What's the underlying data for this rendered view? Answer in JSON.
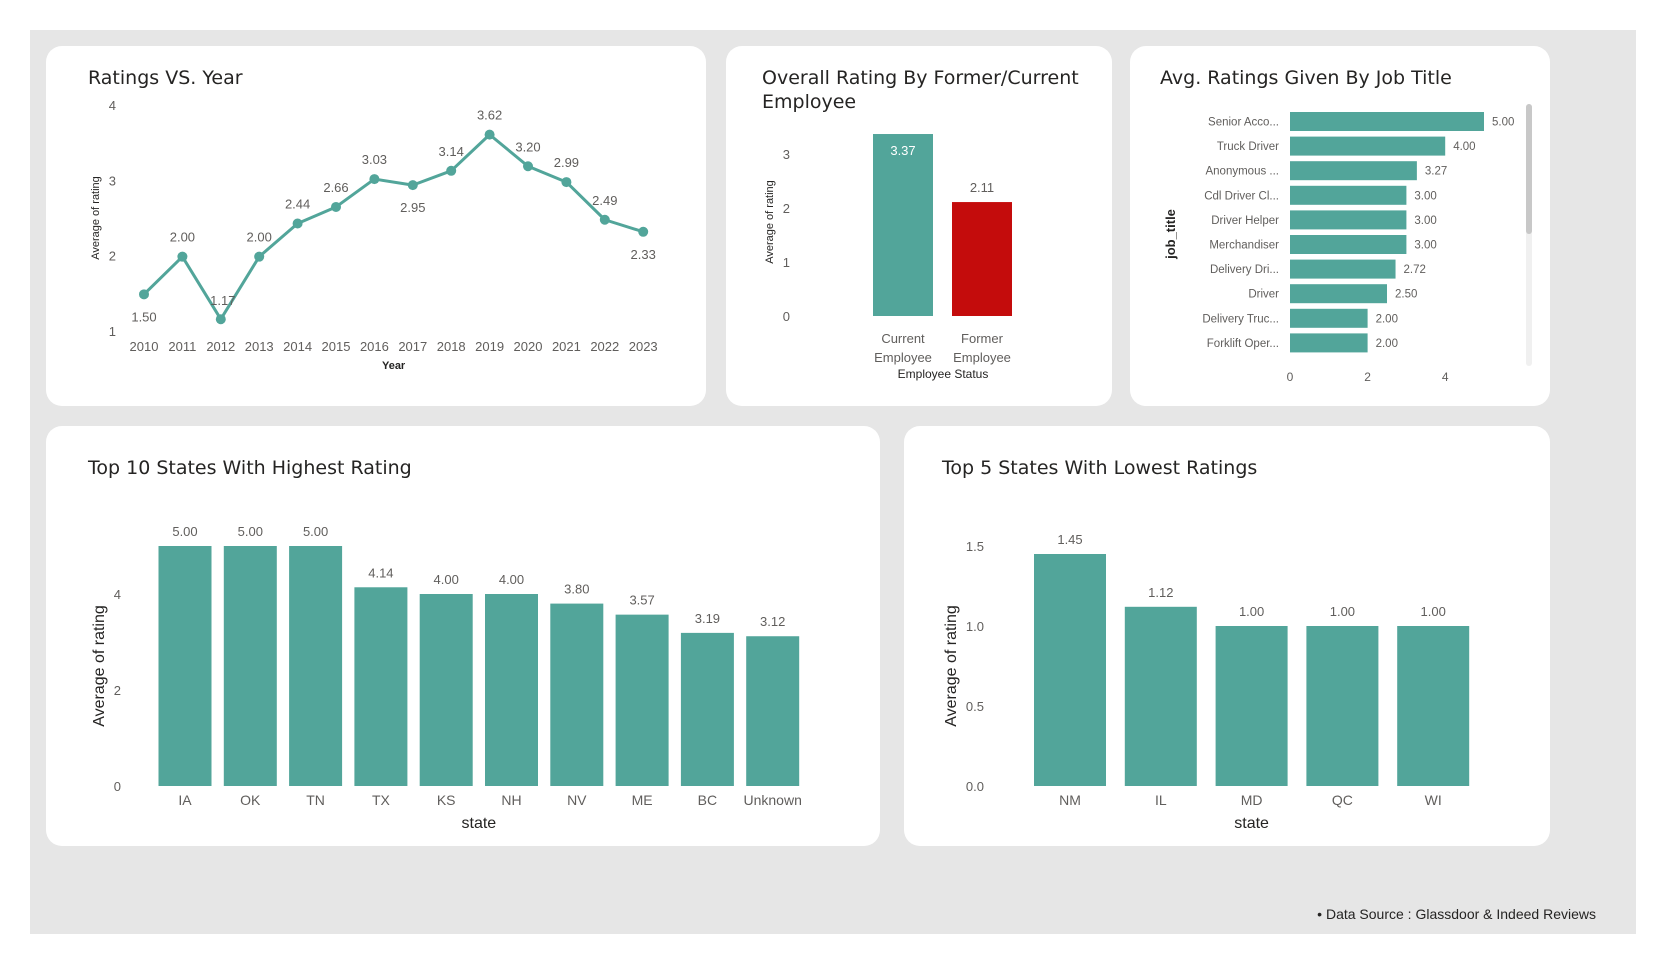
{
  "footer": {
    "bullet": "•",
    "text": "Data Source : Glassdoor & Indeed Reviews"
  },
  "colors": {
    "teal": "#52a59a",
    "red": "#c40c0c",
    "axis_text": "#605e5c",
    "label_text": "#252423"
  },
  "chart_data": [
    {
      "id": "ratings-vs-year",
      "type": "line",
      "title": "Ratings VS. Year",
      "xlabel": "Year",
      "ylabel": "Average of rating",
      "ylim": [
        1,
        4
      ],
      "yticks": [
        "1",
        "2",
        "3",
        "4"
      ],
      "x": [
        "2010",
        "2011",
        "2012",
        "2013",
        "2014",
        "2015",
        "2016",
        "2017",
        "2018",
        "2019",
        "2020",
        "2021",
        "2022",
        "2023"
      ],
      "values": [
        1.5,
        2.0,
        1.17,
        2.0,
        2.44,
        2.66,
        3.03,
        2.95,
        3.14,
        3.62,
        3.2,
        2.99,
        2.49,
        2.33
      ],
      "labels": [
        "1.50",
        "2.00",
        "1.17",
        "2.00",
        "2.44",
        "2.66",
        "3.03",
        "2.95",
        "3.14",
        "3.62",
        "3.20",
        "2.99",
        "2.49",
        "2.33"
      ],
      "grid": false
    },
    {
      "id": "rating-by-employee-status",
      "type": "bar",
      "title": "Overall Rating By Former/Current Employee",
      "xlabel": "Employee Status",
      "ylabel": "Average of rating",
      "ylim": [
        0,
        3.5
      ],
      "yticks": [
        "0",
        "1",
        "2",
        "3"
      ],
      "categories": [
        [
          "Current",
          "Employee"
        ],
        [
          "Former",
          "Employee"
        ]
      ],
      "values": [
        3.37,
        2.11
      ],
      "labels": [
        "3.37",
        "2.11"
      ],
      "bar_colors": [
        "#52a59a",
        "#c40c0c"
      ]
    },
    {
      "id": "ratings-by-job-title",
      "type": "bar",
      "orientation": "horizontal",
      "title": "Avg. Ratings Given By Job Title",
      "ylabel": "job_title",
      "xlim": [
        0,
        5
      ],
      "xticks": [
        "0",
        "2",
        "4"
      ],
      "categories": [
        "Senior Acco...",
        "Truck Driver",
        "Anonymous ...",
        "Cdl Driver Cl...",
        "Driver Helper",
        "Merchandiser",
        "Delivery Dri...",
        "Driver",
        "Delivery Truc...",
        "Forklift Oper..."
      ],
      "values": [
        5.0,
        4.0,
        3.27,
        3.0,
        3.0,
        3.0,
        2.72,
        2.5,
        2.0,
        2.0
      ],
      "labels": [
        "5.00",
        "4.00",
        "3.27",
        "3.00",
        "3.00",
        "3.00",
        "2.72",
        "2.50",
        "2.00",
        "2.00"
      ]
    },
    {
      "id": "top10-states-highest",
      "type": "bar",
      "title": "Top 10 States With Highest Rating",
      "xlabel": "state",
      "ylabel": "Average of rating",
      "ylim": [
        0,
        5
      ],
      "yticks": [
        "0",
        "2",
        "4"
      ],
      "categories": [
        "IA",
        "OK",
        "TN",
        "TX",
        "KS",
        "NH",
        "NV",
        "ME",
        "BC",
        "Unknown"
      ],
      "values": [
        5.0,
        5.0,
        5.0,
        4.14,
        4.0,
        4.0,
        3.8,
        3.57,
        3.19,
        3.12
      ],
      "labels": [
        "5.00",
        "5.00",
        "5.00",
        "4.14",
        "4.00",
        "4.00",
        "3.80",
        "3.57",
        "3.19",
        "3.12"
      ]
    },
    {
      "id": "top5-states-lowest",
      "type": "bar",
      "title": "Top 5 States With Lowest Ratings",
      "xlabel": "state",
      "ylabel": "Average of rating",
      "ylim": [
        0,
        1.5
      ],
      "yticks": [
        "0.0",
        "0.5",
        "1.0",
        "1.5"
      ],
      "categories": [
        "NM",
        "IL",
        "MD",
        "QC",
        "WI"
      ],
      "values": [
        1.45,
        1.12,
        1.0,
        1.0,
        1.0
      ],
      "labels": [
        "1.45",
        "1.12",
        "1.00",
        "1.00",
        "1.00"
      ]
    }
  ]
}
